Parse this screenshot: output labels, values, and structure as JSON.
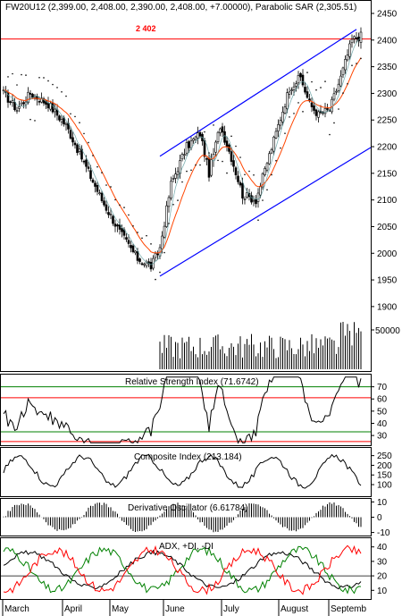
{
  "chart_data": [
    {
      "type": "candlestick",
      "title": "FW20U12 (2,399.00, 2,408.00, 2,390.00, 2,408.00, +7.00000), Parabolic SAR (2,305.51)",
      "price_ylim": [
        1930,
        2450
      ],
      "yticks": [
        "2450",
        "2400",
        "2350",
        "2300",
        "2250",
        "2200",
        "2150",
        "2100",
        "2050",
        "2000",
        "1950",
        "1900"
      ],
      "volume_tick": "50000",
      "hline_value": 2402,
      "hline_label": "2 402",
      "x_labels": [
        "March",
        "April",
        "May",
        "June",
        "July",
        "August",
        "Septemb"
      ],
      "close_anchors": [
        [
          0,
          2300
        ],
        [
          6,
          2270
        ],
        [
          12,
          2300
        ],
        [
          20,
          2280
        ],
        [
          28,
          2240
        ],
        [
          36,
          2170
        ],
        [
          44,
          2100
        ],
        [
          52,
          2040
        ],
        [
          60,
          1990
        ],
        [
          66,
          1975
        ],
        [
          70,
          2010
        ],
        [
          75,
          2130
        ],
        [
          82,
          2200
        ],
        [
          88,
          2225
        ],
        [
          92,
          2150
        ],
        [
          97,
          2240
        ],
        [
          102,
          2180
        ],
        [
          107,
          2110
        ],
        [
          113,
          2100
        ],
        [
          118,
          2170
        ],
        [
          123,
          2240
        ],
        [
          128,
          2310
        ],
        [
          133,
          2330
        ],
        [
          137,
          2280
        ],
        [
          141,
          2260
        ],
        [
          146,
          2270
        ],
        [
          151,
          2330
        ],
        [
          156,
          2400
        ],
        [
          160,
          2408
        ]
      ],
      "channel": {
        "upper": [
          [
            70,
            2182
          ],
          [
            158,
            2420
          ]
        ],
        "lower": [
          [
            70,
            1957
          ],
          [
            165,
            2200
          ]
        ]
      },
      "colors": {
        "candle": "#000000",
        "ema": "#ff4500",
        "ma": "#5f9ea0",
        "channel": "#0000ff",
        "hline": "#ff0000",
        "label": "#ff0000"
      }
    },
    {
      "type": "line",
      "title": "Relative Strength Index (71.6742)",
      "ylim": [
        22,
        80
      ],
      "yticks": [
        "70",
        "60",
        "50",
        "40",
        "30"
      ],
      "levels": [
        70,
        61,
        33,
        25
      ],
      "level_colors": [
        "#008000",
        "#ff0000",
        "#008000",
        "#ff0000"
      ]
    },
    {
      "type": "line",
      "title": "Composite Index (213.184)",
      "ylim": [
        40,
        290
      ],
      "yticks": [
        "250",
        "200",
        "150",
        "100"
      ]
    },
    {
      "type": "bar",
      "title": "Derivative Oscillator (6.61784)",
      "ylim": [
        -12,
        12
      ],
      "yticks": [
        "10",
        "0",
        "-10"
      ]
    },
    {
      "type": "line",
      "title": "ADX, +DI, -DI",
      "ylim": [
        4,
        46
      ],
      "yticks": [
        "40",
        "30",
        "20",
        "10"
      ],
      "level": 20,
      "series_colors": [
        "#000000",
        "#008000",
        "#ff0000"
      ]
    }
  ]
}
